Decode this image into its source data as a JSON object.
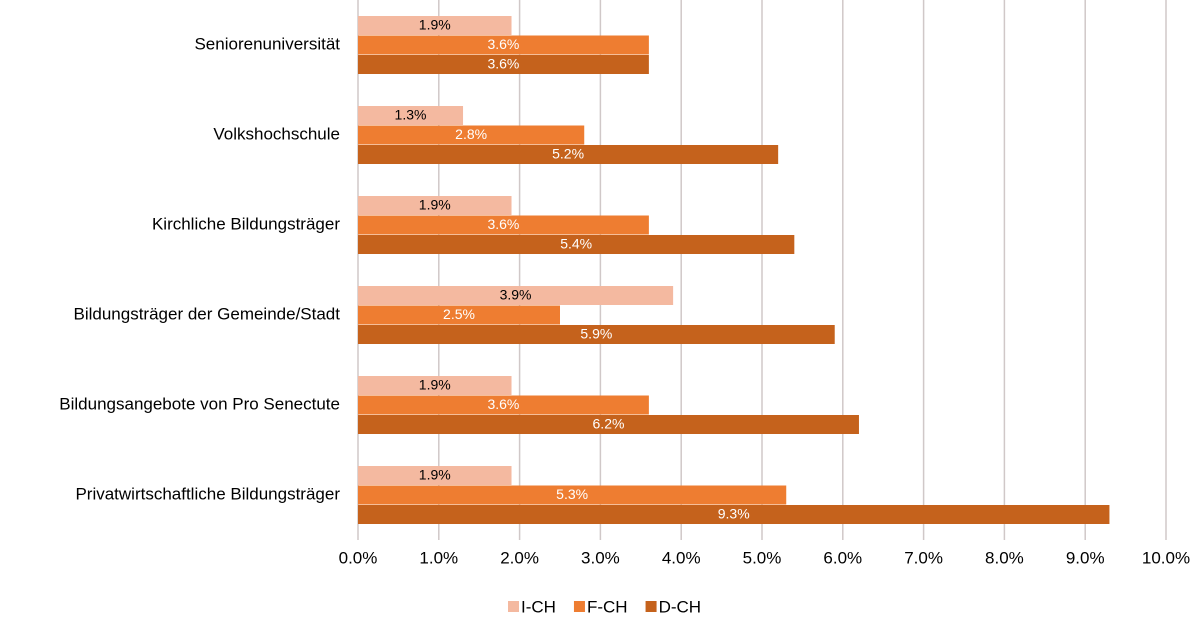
{
  "chart_data": {
    "type": "bar",
    "orientation": "horizontal",
    "categories": [
      "Seniorenuniversität",
      "Volkshochschule",
      "Kirchliche Bildungsträger",
      "Bildungsträger der Gemeinde/Stadt",
      "Bildungsangebote von Pro Senectute",
      "Privatwirtschaftliche Bildungsträger"
    ],
    "series": [
      {
        "name": "I-CH",
        "color": "#f4b9a0",
        "label_color": "#000000",
        "values": [
          1.9,
          1.3,
          1.9,
          3.9,
          1.9,
          1.9
        ],
        "value_labels": [
          "1.9%",
          "1.3%",
          "1.9%",
          "3.9%",
          "1.9%",
          "1.9%"
        ]
      },
      {
        "name": "F-CH",
        "color": "#ee7d31",
        "label_color": "#ffffff",
        "values": [
          3.6,
          2.8,
          3.6,
          2.5,
          3.6,
          5.3
        ],
        "value_labels": [
          "3.6%",
          "2.8%",
          "3.6%",
          "2.5%",
          "3.6%",
          "5.3%"
        ]
      },
      {
        "name": "D-CH",
        "color": "#c5621c",
        "label_color": "#ffffff",
        "values": [
          3.6,
          5.2,
          5.4,
          5.9,
          6.2,
          9.3
        ],
        "value_labels": [
          "3.6%",
          "5.2%",
          "5.4%",
          "5.9%",
          "6.2%",
          "9.3%"
        ]
      }
    ],
    "xlim": [
      0,
      10
    ],
    "xticks": [
      {
        "value": 0,
        "label": "0.0%"
      },
      {
        "value": 1,
        "label": "1.0%"
      },
      {
        "value": 2,
        "label": "2.0%"
      },
      {
        "value": 3,
        "label": "3.0%"
      },
      {
        "value": 4,
        "label": "4.0%"
      },
      {
        "value": 5,
        "label": "5.0%"
      },
      {
        "value": 6,
        "label": "6.0%"
      },
      {
        "value": 7,
        "label": "7.0%"
      },
      {
        "value": 8,
        "label": "8.0%"
      },
      {
        "value": 9,
        "label": "9.0%"
      },
      {
        "value": 10,
        "label": "10.0%"
      }
    ],
    "grid": true,
    "legend": "bottom"
  }
}
